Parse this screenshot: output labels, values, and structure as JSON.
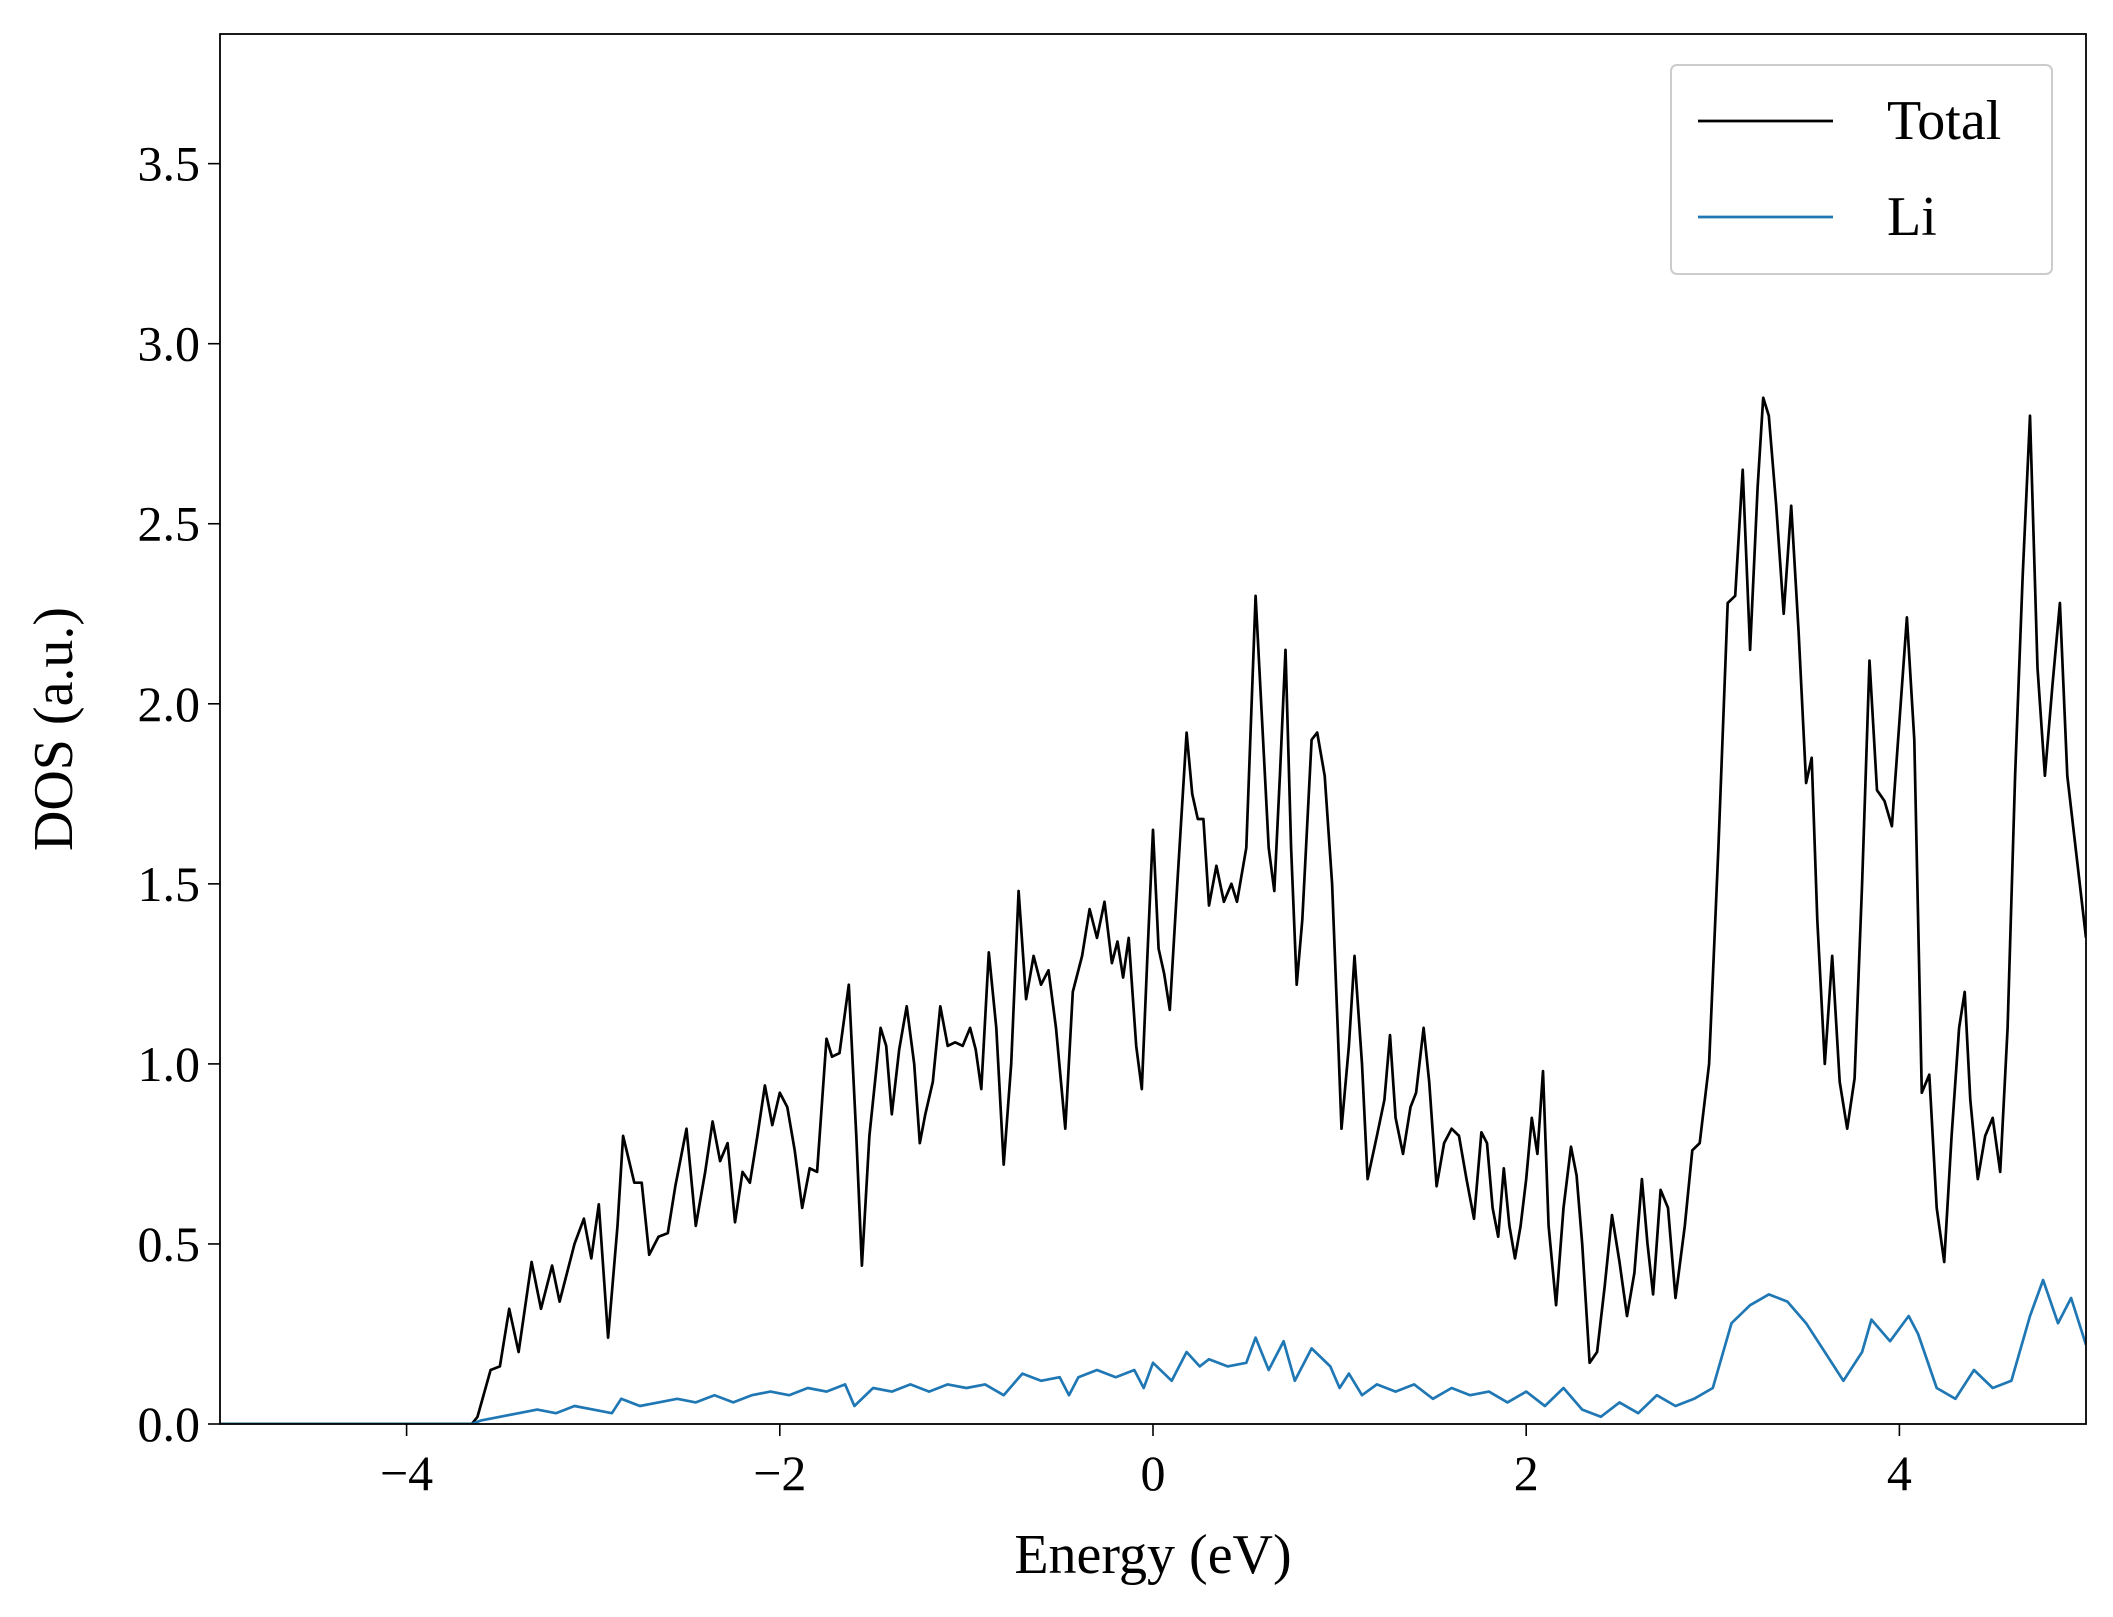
{
  "chart_data": {
    "type": "line",
    "xlabel": "Energy (eV)",
    "ylabel": "DOS (a.u.)",
    "xlim": [
      -5,
      5
    ],
    "ylim": [
      0,
      3.86
    ],
    "xticks": [
      {
        "value": -4,
        "label": "−4"
      },
      {
        "value": -2,
        "label": "−2"
      },
      0,
      2,
      4
    ],
    "yticks": [
      {
        "value": 0,
        "label": "0.0"
      },
      0.5,
      {
        "value": 1,
        "label": "1.0"
      },
      1.5,
      {
        "value": 2,
        "label": "2.0"
      },
      2.5,
      {
        "value": 3,
        "label": "3.0"
      },
      3.5
    ],
    "legend": "upper right",
    "series": [
      {
        "name": "Total",
        "color": "#000000",
        "x": [
          -5,
          -3.65,
          -3.62,
          -3.55,
          -3.5,
          -3.45,
          -3.4,
          -3.33,
          -3.28,
          -3.22,
          -3.18,
          -3.1,
          -3.05,
          -3.01,
          -2.97,
          -2.92,
          -2.87,
          -2.84,
          -2.78,
          -2.74,
          -2.7,
          -2.65,
          -2.6,
          -2.56,
          -2.5,
          -2.45,
          -2.4,
          -2.36,
          -2.32,
          -2.28,
          -2.24,
          -2.2,
          -2.16,
          -2.12,
          -2.08,
          -2.04,
          -2.0,
          -1.96,
          -1.92,
          -1.88,
          -1.84,
          -1.8,
          -1.75,
          -1.72,
          -1.68,
          -1.63,
          -1.59,
          -1.56,
          -1.52,
          -1.46,
          -1.43,
          -1.4,
          -1.36,
          -1.32,
          -1.28,
          -1.25,
          -1.22,
          -1.18,
          -1.14,
          -1.1,
          -1.06,
          -1.02,
          -0.98,
          -0.95,
          -0.92,
          -0.88,
          -0.84,
          -0.8,
          -0.76,
          -0.72,
          -0.68,
          -0.64,
          -0.6,
          -0.56,
          -0.52,
          -0.47,
          -0.43,
          -0.38,
          -0.34,
          -0.3,
          -0.26,
          -0.22,
          -0.19,
          -0.16,
          -0.13,
          -0.09,
          -0.06,
          -0.03,
          0,
          0.03,
          0.06,
          0.09,
          0.13,
          0.18,
          0.21,
          0.24,
          0.27,
          0.3,
          0.34,
          0.38,
          0.42,
          0.45,
          0.5,
          0.55,
          0.58,
          0.62,
          0.65,
          0.68,
          0.71,
          0.74,
          0.77,
          0.8,
          0.85,
          0.88,
          0.92,
          0.96,
          0.99,
          1.01,
          1.05,
          1.08,
          1.12,
          1.15,
          1.2,
          1.24,
          1.27,
          1.3,
          1.34,
          1.38,
          1.41,
          1.45,
          1.48,
          1.52,
          1.56,
          1.6,
          1.64,
          1.68,
          1.72,
          1.76,
          1.79,
          1.82,
          1.85,
          1.88,
          1.91,
          1.94,
          1.97,
          2.0,
          2.03,
          2.06,
          2.09,
          2.12,
          2.16,
          2.2,
          2.24,
          2.27,
          2.3,
          2.34,
          2.38,
          2.42,
          2.46,
          2.5,
          2.54,
          2.58,
          2.62,
          2.65,
          2.68,
          2.72,
          2.76,
          2.8,
          2.85,
          2.89,
          2.93,
          2.98,
          3.03,
          3.08,
          3.12,
          3.16,
          3.2,
          3.24,
          3.27,
          3.3,
          3.34,
          3.38,
          3.42,
          3.46,
          3.5,
          3.53,
          3.56,
          3.6,
          3.64,
          3.68,
          3.72,
          3.76,
          3.8,
          3.84,
          3.88,
          3.92,
          3.96,
          4.0,
          4.04,
          4.08,
          4.12,
          4.16,
          4.2,
          4.24,
          4.28,
          4.32,
          4.35,
          4.38,
          4.42,
          4.46,
          4.5,
          4.54,
          4.58,
          4.62,
          4.66,
          4.7,
          4.74,
          4.78,
          4.82,
          4.86,
          4.9,
          5.0
        ],
        "values": [
          0,
          0,
          0.02,
          0.15,
          0.16,
          0.32,
          0.2,
          0.45,
          0.32,
          0.44,
          0.34,
          0.5,
          0.57,
          0.46,
          0.61,
          0.24,
          0.55,
          0.8,
          0.67,
          0.67,
          0.47,
          0.52,
          0.53,
          0.66,
          0.82,
          0.55,
          0.7,
          0.84,
          0.73,
          0.78,
          0.56,
          0.7,
          0.67,
          0.8,
          0.94,
          0.83,
          0.92,
          0.88,
          0.76,
          0.6,
          0.71,
          0.7,
          1.07,
          1.02,
          1.03,
          1.22,
          0.8,
          0.44,
          0.8,
          1.1,
          1.05,
          0.86,
          1.04,
          1.16,
          1.0,
          0.78,
          0.86,
          0.95,
          1.16,
          1.05,
          1.06,
          1.05,
          1.1,
          1.04,
          0.93,
          1.31,
          1.1,
          0.72,
          1.0,
          1.48,
          1.18,
          1.3,
          1.22,
          1.26,
          1.1,
          0.82,
          1.2,
          1.3,
          1.43,
          1.35,
          1.45,
          1.28,
          1.34,
          1.24,
          1.35,
          1.05,
          0.93,
          1.3,
          1.65,
          1.32,
          1.25,
          1.15,
          1.5,
          1.92,
          1.75,
          1.68,
          1.68,
          1.44,
          1.55,
          1.45,
          1.5,
          1.45,
          1.6,
          2.3,
          2.0,
          1.6,
          1.48,
          1.8,
          2.15,
          1.6,
          1.22,
          1.4,
          1.9,
          1.92,
          1.8,
          1.5,
          1.1,
          0.82,
          1.05,
          1.3,
          1.0,
          0.68,
          0.8,
          0.9,
          1.08,
          0.85,
          0.75,
          0.88,
          0.92,
          1.1,
          0.95,
          0.66,
          0.78,
          0.82,
          0.8,
          0.68,
          0.57,
          0.81,
          0.78,
          0.6,
          0.52,
          0.71,
          0.55,
          0.46,
          0.55,
          0.68,
          0.85,
          0.75,
          0.98,
          0.55,
          0.33,
          0.6,
          0.77,
          0.69,
          0.5,
          0.17,
          0.2,
          0.38,
          0.58,
          0.45,
          0.3,
          0.42,
          0.68,
          0.5,
          0.36,
          0.65,
          0.6,
          0.35,
          0.55,
          0.76,
          0.78,
          1.0,
          1.6,
          2.28,
          2.3,
          2.65,
          2.15,
          2.6,
          2.85,
          2.8,
          2.55,
          2.25,
          2.55,
          2.2,
          1.78,
          1.85,
          1.4,
          1.0,
          1.3,
          0.95,
          0.82,
          0.96,
          1.5,
          2.12,
          1.76,
          1.73,
          1.66,
          1.95,
          2.24,
          1.9,
          0.92,
          0.97,
          0.6,
          0.45,
          0.8,
          1.1,
          1.2,
          0.9,
          0.68,
          0.8,
          0.85,
          0.7,
          1.1,
          1.8,
          2.35,
          2.8,
          2.1,
          1.8,
          2.05,
          2.28,
          1.8,
          1.35
        ]
      },
      {
        "name": "Li",
        "color": "#1f77b4",
        "x": [
          -5,
          -3.65,
          -3.6,
          -3.5,
          -3.4,
          -3.3,
          -3.2,
          -3.1,
          -3.0,
          -2.9,
          -2.85,
          -2.75,
          -2.65,
          -2.55,
          -2.45,
          -2.35,
          -2.25,
          -2.15,
          -2.05,
          -1.95,
          -1.85,
          -1.75,
          -1.65,
          -1.6,
          -1.5,
          -1.4,
          -1.3,
          -1.2,
          -1.1,
          -1.0,
          -0.9,
          -0.8,
          -0.7,
          -0.6,
          -0.5,
          -0.45,
          -0.4,
          -0.3,
          -0.2,
          -0.1,
          -0.05,
          0,
          0.1,
          0.18,
          0.25,
          0.3,
          0.4,
          0.5,
          0.55,
          0.62,
          0.7,
          0.76,
          0.85,
          0.95,
          1.0,
          1.05,
          1.12,
          1.2,
          1.3,
          1.4,
          1.5,
          1.6,
          1.7,
          1.8,
          1.9,
          2.0,
          2.1,
          2.2,
          2.3,
          2.4,
          2.5,
          2.6,
          2.7,
          2.8,
          2.9,
          3.0,
          3.1,
          3.2,
          3.3,
          3.4,
          3.5,
          3.6,
          3.7,
          3.8,
          3.85,
          3.95,
          4.05,
          4.1,
          4.2,
          4.3,
          4.4,
          4.5,
          4.6,
          4.7,
          4.77,
          4.85,
          4.92,
          5.0
        ],
        "values": [
          0,
          0,
          0.01,
          0.02,
          0.03,
          0.04,
          0.03,
          0.05,
          0.04,
          0.03,
          0.07,
          0.05,
          0.06,
          0.07,
          0.06,
          0.08,
          0.06,
          0.08,
          0.09,
          0.08,
          0.1,
          0.09,
          0.11,
          0.05,
          0.1,
          0.09,
          0.11,
          0.09,
          0.11,
          0.1,
          0.11,
          0.08,
          0.14,
          0.12,
          0.13,
          0.08,
          0.13,
          0.15,
          0.13,
          0.15,
          0.1,
          0.17,
          0.12,
          0.2,
          0.16,
          0.18,
          0.16,
          0.17,
          0.24,
          0.15,
          0.23,
          0.12,
          0.21,
          0.16,
          0.1,
          0.14,
          0.08,
          0.11,
          0.09,
          0.11,
          0.07,
          0.1,
          0.08,
          0.09,
          0.06,
          0.09,
          0.05,
          0.1,
          0.04,
          0.02,
          0.06,
          0.03,
          0.08,
          0.05,
          0.07,
          0.1,
          0.28,
          0.33,
          0.36,
          0.34,
          0.28,
          0.2,
          0.12,
          0.2,
          0.29,
          0.23,
          0.3,
          0.25,
          0.1,
          0.07,
          0.15,
          0.1,
          0.12,
          0.3,
          0.4,
          0.28,
          0.35,
          0.22
        ]
      }
    ]
  }
}
